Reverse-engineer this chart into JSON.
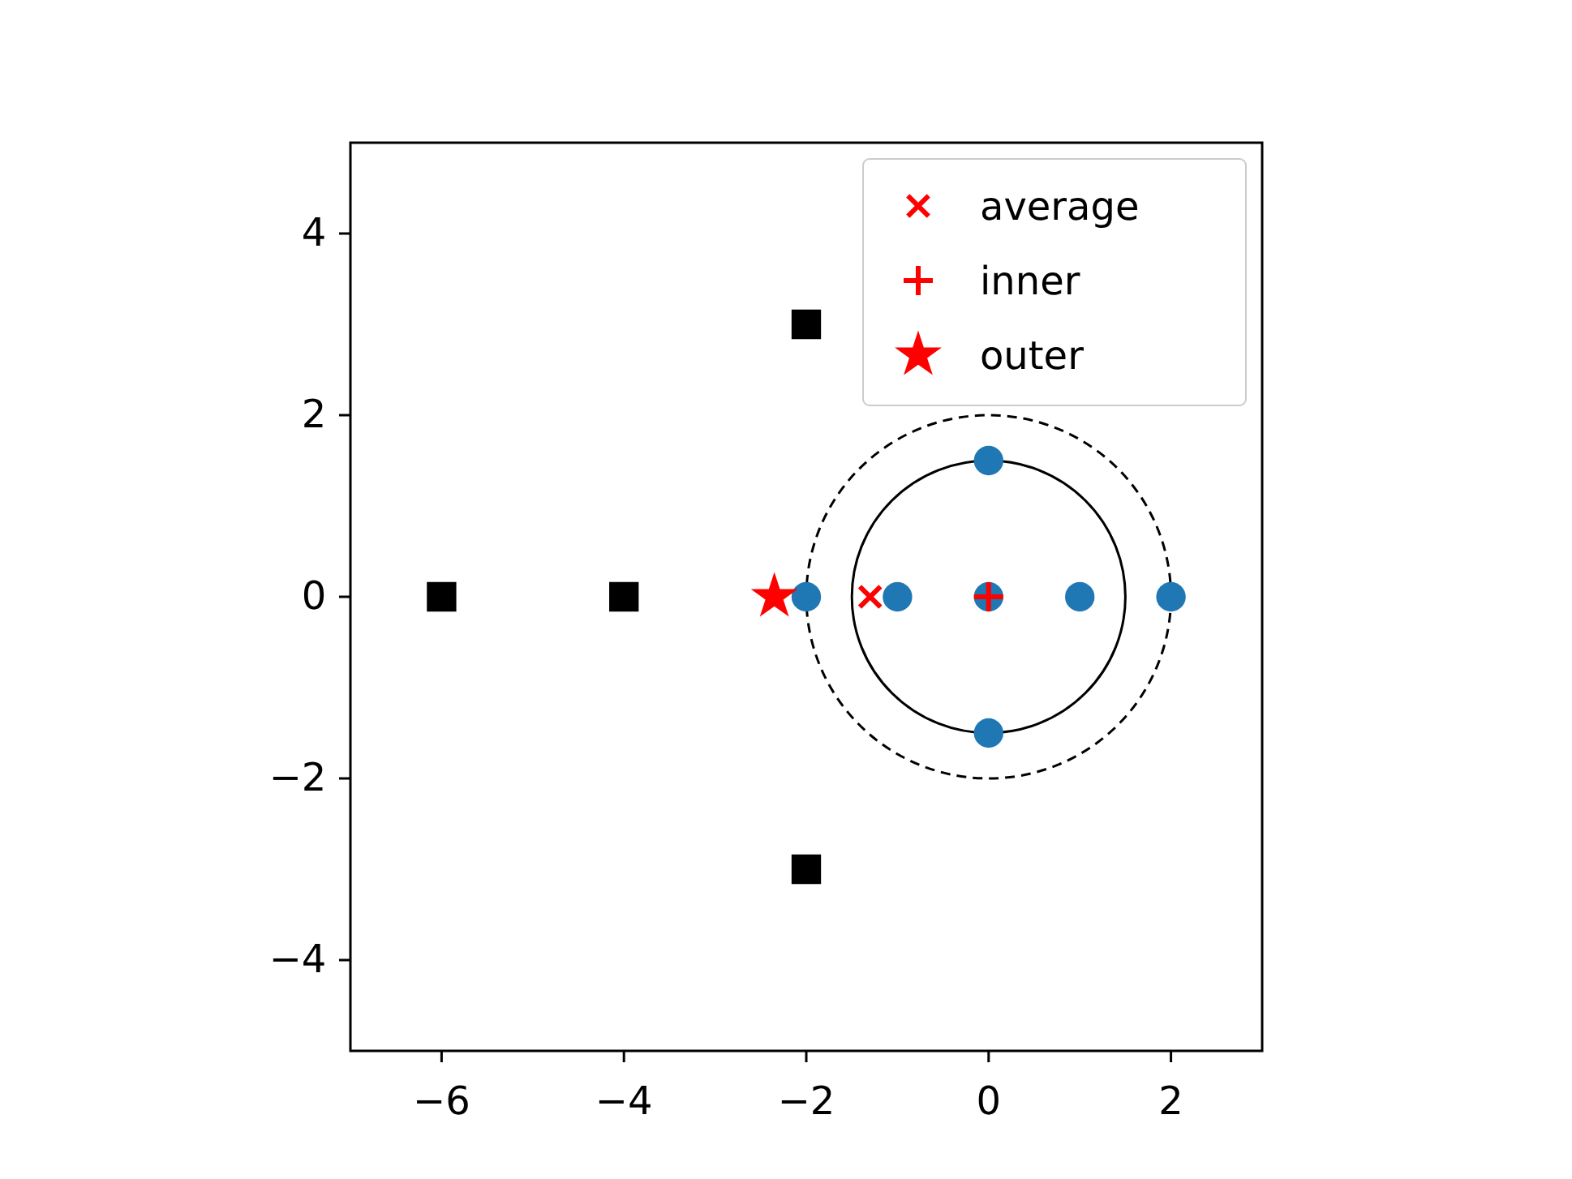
{
  "chart_data": {
    "type": "scatter",
    "xlim": [
      -7,
      3
    ],
    "ylim": [
      -5,
      5
    ],
    "xticks": [
      {
        "value": -6,
        "label": "−6"
      },
      {
        "value": -4,
        "label": "−4"
      },
      {
        "value": -2,
        "label": "−2"
      },
      0,
      2
    ],
    "yticks": [
      {
        "value": -4,
        "label": "−4"
      },
      {
        "value": -2,
        "label": "−2"
      },
      0,
      2,
      4
    ],
    "grid": false,
    "legend": "top right",
    "series": [
      {
        "color": "#1f77b4",
        "marker": "circle",
        "x": [
          -2,
          -1,
          0,
          1,
          2,
          0,
          0
        ],
        "values": [
          0,
          0,
          0,
          0,
          0,
          1.5,
          -1.5
        ]
      },
      {
        "color": "#000000",
        "marker": "square",
        "x": [
          -6,
          -4,
          -2,
          -2
        ],
        "values": [
          0,
          0,
          3,
          -3
        ]
      },
      {
        "name": "average",
        "color": "#ff0000",
        "marker": "x",
        "x": [
          -1.3
        ],
        "values": [
          0
        ]
      },
      {
        "name": "inner",
        "color": "#ff0000",
        "marker": "cross",
        "x": [
          0
        ],
        "values": [
          0
        ]
      },
      {
        "name": "outer",
        "color": "#ff0000",
        "marker": "star",
        "x": [
          -2.35
        ],
        "values": [
          0
        ]
      }
    ]
  }
}
